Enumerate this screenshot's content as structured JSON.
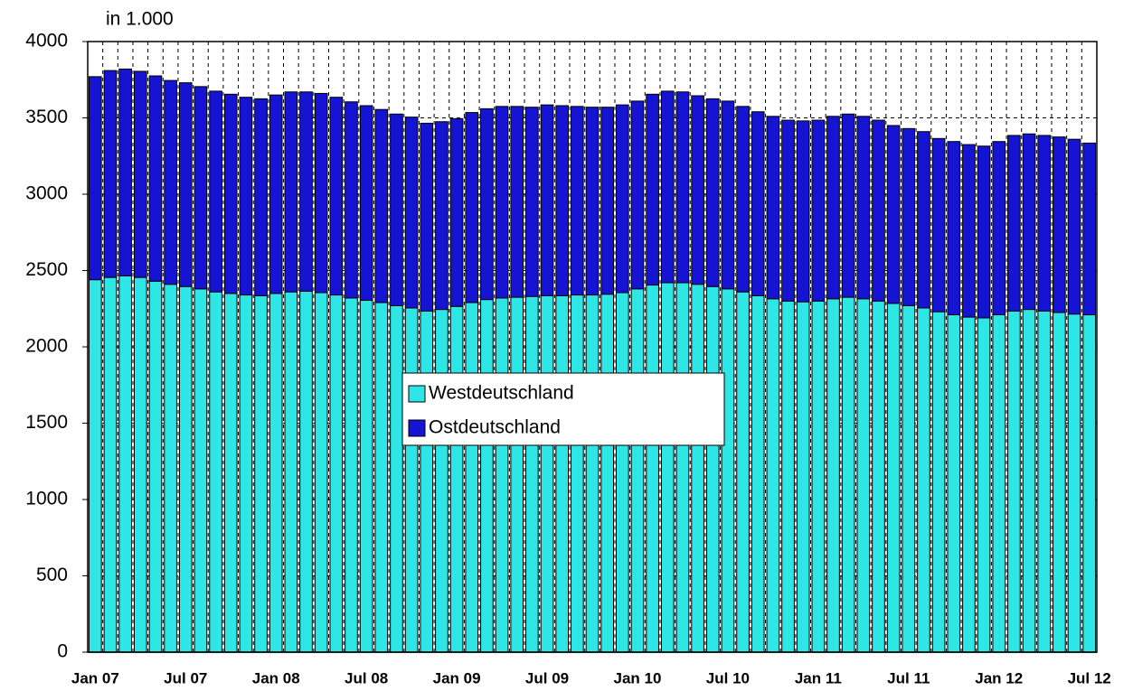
{
  "chart_data": {
    "type": "stacked_bar",
    "y_label": "in 1.000",
    "categories": [
      "Jan 07",
      null,
      null,
      null,
      null,
      null,
      "Jul 07",
      null,
      null,
      null,
      null,
      null,
      "Jan 08",
      null,
      null,
      null,
      null,
      null,
      "Jul 08",
      null,
      null,
      null,
      null,
      null,
      "Jan 09",
      null,
      null,
      null,
      null,
      null,
      "Jul 09",
      null,
      null,
      null,
      null,
      null,
      "Jan 10",
      null,
      null,
      null,
      null,
      null,
      "Jul 10",
      null,
      null,
      null,
      null,
      null,
      "Jan 11",
      null,
      null,
      null,
      null,
      null,
      "Jul 11",
      null,
      null,
      null,
      null,
      null,
      "Jan 12",
      null,
      null,
      null,
      null,
      null,
      "Jul 12"
    ],
    "series": [
      {
        "name": "Westdeutschland",
        "color": "#2ee6e6",
        "values": [
          2440,
          2455,
          2465,
          2455,
          2430,
          2410,
          2395,
          2380,
          2360,
          2350,
          2340,
          2335,
          2350,
          2360,
          2365,
          2355,
          2340,
          2320,
          2305,
          2290,
          2270,
          2255,
          2235,
          2245,
          2265,
          2290,
          2310,
          2320,
          2325,
          2330,
          2335,
          2335,
          2340,
          2340,
          2345,
          2355,
          2380,
          2405,
          2420,
          2420,
          2410,
          2395,
          2380,
          2360,
          2335,
          2315,
          2300,
          2295,
          2300,
          2315,
          2325,
          2315,
          2300,
          2285,
          2270,
          2255,
          2230,
          2210,
          2195,
          2190,
          2210,
          2235,
          2245,
          2235,
          2225,
          2215,
          2210
        ]
      },
      {
        "name": "Ostdeutschland",
        "color": "#1414d2",
        "values": [
          1330,
          1355,
          1355,
          1350,
          1345,
          1335,
          1335,
          1325,
          1315,
          1305,
          1295,
          1290,
          1300,
          1310,
          1305,
          1305,
          1295,
          1285,
          1275,
          1265,
          1255,
          1250,
          1230,
          1230,
          1230,
          1245,
          1250,
          1255,
          1250,
          1240,
          1250,
          1245,
          1235,
          1230,
          1225,
          1230,
          1230,
          1250,
          1255,
          1250,
          1235,
          1230,
          1230,
          1215,
          1205,
          1195,
          1185,
          1185,
          1185,
          1195,
          1200,
          1195,
          1185,
          1165,
          1160,
          1155,
          1135,
          1135,
          1130,
          1125,
          1135,
          1150,
          1150,
          1150,
          1150,
          1145,
          1125
        ]
      }
    ],
    "ylim": [
      0,
      4000
    ],
    "yticks": [
      0,
      500,
      1000,
      1500,
      2000,
      2500,
      3000,
      3500,
      4000
    ],
    "grid": true
  }
}
